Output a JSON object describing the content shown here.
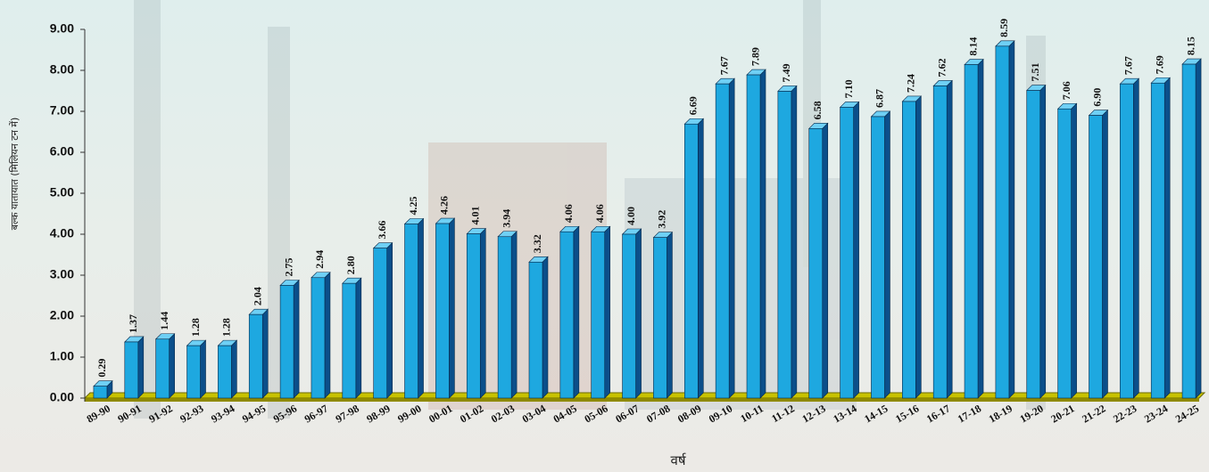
{
  "chart_data": {
    "type": "bar",
    "y_label": "बल्क यातायात (मिलियन टन में)",
    "x_label": "वर्ष",
    "color": "#1ea8e0",
    "categories": [
      "89-90",
      "90-91",
      "91-92",
      "92-93",
      "93-94",
      "94-95",
      "95-96",
      "96-97",
      "97-98",
      "98-99",
      "99-00",
      "00-01",
      "01-02",
      "02-03",
      "03-04",
      "04-05",
      "05-06",
      "06-07",
      "07-08",
      "08-09",
      "09-10",
      "10-11",
      "11-12",
      "12-13",
      "13-14",
      "14-15",
      "15-16",
      "16-17",
      "17-18",
      "18-19",
      "19-20",
      "20-21",
      "21-22",
      "22-23",
      "23-24",
      "24-25"
    ],
    "values": [
      0.29,
      1.37,
      1.44,
      1.28,
      1.28,
      2.04,
      2.75,
      2.94,
      2.8,
      3.66,
      4.25,
      4.26,
      4.01,
      3.94,
      3.32,
      4.06,
      4.06,
      4,
      3.92,
      6.69,
      7.67,
      7.89,
      7.49,
      6.58,
      7.1,
      6.87,
      7.24,
      7.62,
      8.14,
      8.59,
      7.51,
      7.06,
      6.9,
      7.67,
      7.69,
      8.15
    ],
    "value_labels": [
      "0.29",
      "1.37",
      "1.44",
      "1.28",
      "1.28",
      "2.04",
      "2.75",
      "2.94",
      "2.80",
      "3.66",
      "4.25",
      "4.26",
      "4.01",
      "3.94",
      "3.32",
      "4.06",
      "4.06",
      "4.00",
      "3.92",
      "6.69",
      "7.67",
      "7.89",
      "7.49",
      "6.58",
      "7.10",
      "6.87",
      "7.24",
      "7.62",
      "8.14",
      "8.59",
      "7.51",
      "7.06",
      "6.90",
      "7.67",
      "7.69",
      "8.15"
    ],
    "ylim": [
      0,
      9
    ],
    "yticks": [
      {
        "value": 0,
        "label": "0.00"
      },
      {
        "value": 1,
        "label": "1.00"
      },
      {
        "value": 2,
        "label": "2.00"
      },
      {
        "value": 3,
        "label": "3.00"
      },
      {
        "value": 4,
        "label": "4.00"
      },
      {
        "value": 5,
        "label": "5.00"
      },
      {
        "value": 6,
        "label": "6.00"
      },
      {
        "value": 7,
        "label": "7.00"
      },
      {
        "value": 8,
        "label": "8.00"
      },
      {
        "value": 9,
        "label": "9.00"
      }
    ]
  }
}
